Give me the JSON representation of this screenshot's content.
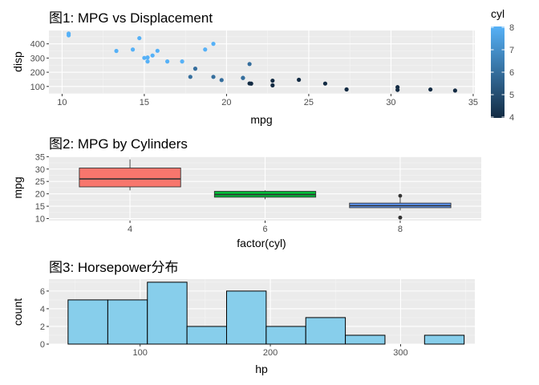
{
  "chart_data": [
    {
      "type": "scatter",
      "title": "图1: MPG vs Displacement",
      "xlabel": "mpg",
      "ylabel": "disp",
      "xlim": [
        9.2,
        35.1
      ],
      "ylim": [
        48,
        494
      ],
      "x_ticks": [
        10,
        15,
        20,
        25,
        30,
        35
      ],
      "x_tick_labels": [
        "10",
        "15",
        "20",
        "25",
        "30",
        "35"
      ],
      "y_ticks": [
        100,
        200,
        300,
        400
      ],
      "y_tick_labels": [
        "100",
        "200",
        "300",
        "400"
      ],
      "color_var": "cyl",
      "legend": {
        "title": "cyl",
        "range": [
          4,
          8
        ],
        "ticks": [
          4,
          5,
          6,
          7,
          8
        ],
        "tick_labels": [
          "4",
          "5",
          "6",
          "7",
          "8"
        ],
        "low_color": "#132B43",
        "high_color": "#56B1F7",
        "placement": "right"
      },
      "points": [
        {
          "x": 21.0,
          "y": 160.0,
          "cyl": 6
        },
        {
          "x": 21.0,
          "y": 160.0,
          "cyl": 6
        },
        {
          "x": 22.8,
          "y": 108.0,
          "cyl": 4
        },
        {
          "x": 21.4,
          "y": 258.0,
          "cyl": 6
        },
        {
          "x": 18.7,
          "y": 360.0,
          "cyl": 8
        },
        {
          "x": 18.1,
          "y": 225.0,
          "cyl": 6
        },
        {
          "x": 14.3,
          "y": 360.0,
          "cyl": 8
        },
        {
          "x": 24.4,
          "y": 146.7,
          "cyl": 4
        },
        {
          "x": 22.8,
          "y": 140.8,
          "cyl": 4
        },
        {
          "x": 19.2,
          "y": 167.6,
          "cyl": 6
        },
        {
          "x": 17.8,
          "y": 167.6,
          "cyl": 6
        },
        {
          "x": 16.4,
          "y": 275.8,
          "cyl": 8
        },
        {
          "x": 17.3,
          "y": 275.8,
          "cyl": 8
        },
        {
          "x": 15.2,
          "y": 275.8,
          "cyl": 8
        },
        {
          "x": 10.4,
          "y": 472.0,
          "cyl": 8
        },
        {
          "x": 10.4,
          "y": 460.0,
          "cyl": 8
        },
        {
          "x": 14.7,
          "y": 440.0,
          "cyl": 8
        },
        {
          "x": 32.4,
          "y": 78.7,
          "cyl": 4
        },
        {
          "x": 30.4,
          "y": 75.7,
          "cyl": 4
        },
        {
          "x": 33.9,
          "y": 71.1,
          "cyl": 4
        },
        {
          "x": 21.5,
          "y": 120.1,
          "cyl": 4
        },
        {
          "x": 15.5,
          "y": 318.0,
          "cyl": 8
        },
        {
          "x": 15.2,
          "y": 304.0,
          "cyl": 8
        },
        {
          "x": 13.3,
          "y": 350.0,
          "cyl": 8
        },
        {
          "x": 19.2,
          "y": 400.0,
          "cyl": 8
        },
        {
          "x": 27.3,
          "y": 79.0,
          "cyl": 4
        },
        {
          "x": 26.0,
          "y": 120.3,
          "cyl": 4
        },
        {
          "x": 30.4,
          "y": 95.1,
          "cyl": 4
        },
        {
          "x": 15.8,
          "y": 351.0,
          "cyl": 8
        },
        {
          "x": 19.7,
          "y": 145.0,
          "cyl": 6
        },
        {
          "x": 15.0,
          "y": 301.0,
          "cyl": 8
        },
        {
          "x": 21.4,
          "y": 121.0,
          "cyl": 4
        }
      ]
    },
    {
      "type": "box",
      "title": "图2: MPG by Cylinders",
      "xlabel": "factor(cyl)",
      "ylabel": "mpg",
      "ylim": [
        9.2,
        35.1
      ],
      "y_ticks": [
        10,
        15,
        20,
        25,
        30,
        35
      ],
      "y_tick_labels": [
        "10",
        "15",
        "20",
        "25",
        "30",
        "35"
      ],
      "categories": [
        "4",
        "6",
        "8"
      ],
      "boxes": [
        {
          "label": "4",
          "min": 21.4,
          "q1": 22.8,
          "median": 26.0,
          "q3": 30.4,
          "max": 33.9,
          "outliers": [],
          "color": "#F8766D"
        },
        {
          "label": "6",
          "min": 17.8,
          "q1": 18.65,
          "median": 19.7,
          "q3": 21.0,
          "max": 21.4,
          "outliers": [],
          "color": "#00BA38"
        },
        {
          "label": "8",
          "min": 13.3,
          "q1": 14.4,
          "median": 15.2,
          "q3": 16.25,
          "max": 18.7,
          "outliers": [
            10.4,
            10.4,
            19.2
          ],
          "color": "#619CFF"
        }
      ]
    },
    {
      "type": "histogram",
      "title": "图3: Horsepower分布",
      "xlabel": "hp",
      "ylabel": "count",
      "xlim": [
        30,
        357
      ],
      "ylim": [
        0,
        7.35
      ],
      "x_ticks": [
        100,
        200,
        300
      ],
      "x_tick_labels": [
        "100",
        "200",
        "300"
      ],
      "y_ticks": [
        0,
        2,
        4,
        6
      ],
      "y_tick_labels": [
        "0",
        "2",
        "4",
        "6"
      ],
      "fill": "#87CEEB",
      "bins": [
        {
          "x0": 44.7,
          "x1": 75.2,
          "count": 5
        },
        {
          "x0": 75.2,
          "x1": 105.6,
          "count": 5
        },
        {
          "x0": 105.6,
          "x1": 136.0,
          "count": 7
        },
        {
          "x0": 136.0,
          "x1": 166.4,
          "count": 2
        },
        {
          "x0": 166.4,
          "x1": 196.8,
          "count": 6
        },
        {
          "x0": 196.8,
          "x1": 227.2,
          "count": 2
        },
        {
          "x0": 227.2,
          "x1": 257.6,
          "count": 3
        },
        {
          "x0": 257.6,
          "x1": 288.0,
          "count": 1
        },
        {
          "x0": 288.0,
          "x1": 318.4,
          "count": 0
        },
        {
          "x0": 318.4,
          "x1": 348.8,
          "count": 1
        }
      ]
    }
  ]
}
